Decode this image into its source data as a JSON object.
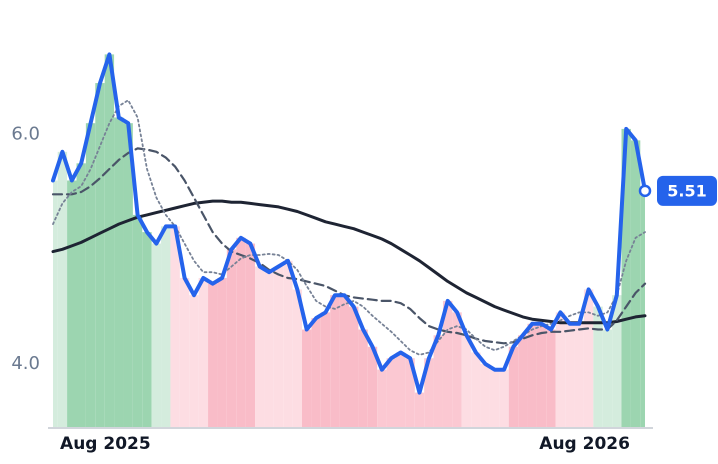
{
  "chart_data": {
    "type": "line",
    "categories": [
      null,
      null,
      null,
      null,
      null,
      null,
      "Aug 2025",
      null,
      null,
      null,
      null,
      null,
      null,
      null,
      null,
      null,
      null,
      null,
      null,
      null,
      null,
      null,
      null,
      null,
      null,
      null,
      null,
      null,
      null,
      null,
      null,
      null,
      null,
      null,
      null,
      null,
      null,
      null,
      null,
      null,
      null,
      null,
      null,
      null,
      null,
      null,
      null,
      null,
      null,
      null,
      null,
      null,
      null,
      null,
      null,
      null,
      null,
      "Aug 2026",
      null,
      null,
      null,
      null,
      null,
      null
    ],
    "series": [
      {
        "color": "#2563eb",
        "width": 4,
        "dash": "solid",
        "values": [
          5.6,
          5.85,
          5.6,
          5.75,
          6.1,
          6.45,
          6.7,
          6.15,
          6.1,
          5.3,
          5.15,
          5.05,
          5.2,
          5.2,
          4.75,
          4.6,
          4.75,
          4.7,
          4.75,
          5.0,
          5.1,
          5.05,
          4.85,
          4.8,
          4.85,
          4.9,
          4.65,
          4.3,
          4.4,
          4.45,
          4.6,
          4.6,
          4.5,
          4.3,
          4.15,
          3.95,
          4.05,
          4.1,
          4.05,
          3.75,
          4.05,
          4.25,
          4.55,
          4.45,
          4.25,
          4.1,
          4.0,
          3.95,
          3.95,
          4.15,
          4.25,
          4.35,
          4.35,
          4.3,
          4.45,
          4.35,
          4.35,
          4.65,
          4.5,
          4.3,
          4.6,
          6.05,
          5.95,
          5.51
        ]
      },
      {
        "color": "#778296",
        "width": 1.8,
        "dash": "dotted",
        "values": [
          5.22,
          5.4,
          5.5,
          5.55,
          5.7,
          5.9,
          6.1,
          6.25,
          6.3,
          6.15,
          5.7,
          5.45,
          5.3,
          5.2,
          5.05,
          4.9,
          4.8,
          4.8,
          4.78,
          4.85,
          4.92,
          4.95,
          4.95,
          4.96,
          4.95,
          4.9,
          4.82,
          4.68,
          4.55,
          4.5,
          4.48,
          4.52,
          4.55,
          4.5,
          4.42,
          4.35,
          4.28,
          4.2,
          4.12,
          4.08,
          4.1,
          4.2,
          4.3,
          4.33,
          4.3,
          4.22,
          4.15,
          4.12,
          4.15,
          4.2,
          4.25,
          4.3,
          4.33,
          4.35,
          4.38,
          4.42,
          4.45,
          4.45,
          4.42,
          4.45,
          4.6,
          4.9,
          5.1,
          5.15
        ]
      },
      {
        "color": "#4a5568",
        "width": 2.2,
        "dash": "dashed",
        "values": [
          5.48,
          5.48,
          5.48,
          5.5,
          5.55,
          5.62,
          5.7,
          5.78,
          5.84,
          5.88,
          5.87,
          5.85,
          5.8,
          5.72,
          5.6,
          5.45,
          5.3,
          5.15,
          5.05,
          4.98,
          4.95,
          4.92,
          4.88,
          4.82,
          4.78,
          4.75,
          4.74,
          4.72,
          4.7,
          4.68,
          4.64,
          4.6,
          4.58,
          4.57,
          4.56,
          4.55,
          4.55,
          4.53,
          4.48,
          4.4,
          4.33,
          4.3,
          4.28,
          4.27,
          4.25,
          4.22,
          4.2,
          4.19,
          4.18,
          4.19,
          4.22,
          4.25,
          4.27,
          4.28,
          4.28,
          4.29,
          4.3,
          4.31,
          4.3,
          4.3,
          4.38,
          4.5,
          4.62,
          4.7
        ]
      },
      {
        "color": "#1e2433",
        "width": 3,
        "dash": "solid",
        "values": [
          4.98,
          5.0,
          5.03,
          5.06,
          5.1,
          5.14,
          5.18,
          5.22,
          5.25,
          5.28,
          5.3,
          5.32,
          5.34,
          5.36,
          5.38,
          5.4,
          5.41,
          5.42,
          5.42,
          5.41,
          5.41,
          5.4,
          5.39,
          5.38,
          5.37,
          5.35,
          5.33,
          5.3,
          5.27,
          5.24,
          5.22,
          5.2,
          5.18,
          5.15,
          5.12,
          5.09,
          5.05,
          5.0,
          4.95,
          4.9,
          4.84,
          4.78,
          4.72,
          4.67,
          4.62,
          4.58,
          4.54,
          4.5,
          4.47,
          4.44,
          4.41,
          4.39,
          4.38,
          4.37,
          4.36,
          4.36,
          4.36,
          4.36,
          4.36,
          4.36,
          4.37,
          4.39,
          4.41,
          4.42
        ]
      }
    ],
    "bar_colors": [
      "#d4ecdd",
      "#d4ecdd",
      "#9cd5b0",
      "#9cd5b0",
      "#9cd5b0",
      "#9cd5b0",
      "#9cd5b0",
      "#9cd5b0",
      "#9cd5b0",
      "#9cd5b0",
      "#9cd5b0",
      "#d4ecdd",
      "#d4ecdd",
      "#fddde3",
      "#fddde3",
      "#fddde3",
      "#fddde3",
      "#f9bcc8",
      "#f9bcc8",
      "#f9bcc8",
      "#f9bcc8",
      "#f9bcc8",
      "#fddde3",
      "#fddde3",
      "#fddde3",
      "#fddde3",
      "#fddde3",
      "#f9bcc8",
      "#f9bcc8",
      "#f9bcc8",
      "#f9bcc8",
      "#f9bcc8",
      "#f9bcc8",
      "#f9bcc8",
      "#f9bcc8",
      "#fbc8d2",
      "#fbc8d2",
      "#fbc8d2",
      "#fbc8d2",
      "#fbc8d2",
      "#fbc8d2",
      "#fbc8d2",
      "#fbc8d2",
      "#fbc8d2",
      "#fddde3",
      "#fddde3",
      "#fddde3",
      "#fddde3",
      "#fddde3",
      "#f9bcc8",
      "#f9bcc8",
      "#f9bcc8",
      "#f9bcc8",
      "#f9bcc8",
      "#fddde3",
      "#fddde3",
      "#fddde3",
      "#fddde3",
      "#d4ecdd",
      "#d4ecdd",
      "#d4ecdd",
      "#9cd5b0",
      "#9cd5b0",
      "#9cd5b0"
    ],
    "badge_color": "#2563eb",
    "ylim": [
      3.45,
      7.0
    ],
    "yticks": [
      {
        "value": 4,
        "label": "4.0"
      },
      {
        "value": 6,
        "label": "6.0"
      }
    ],
    "grid": false
  }
}
